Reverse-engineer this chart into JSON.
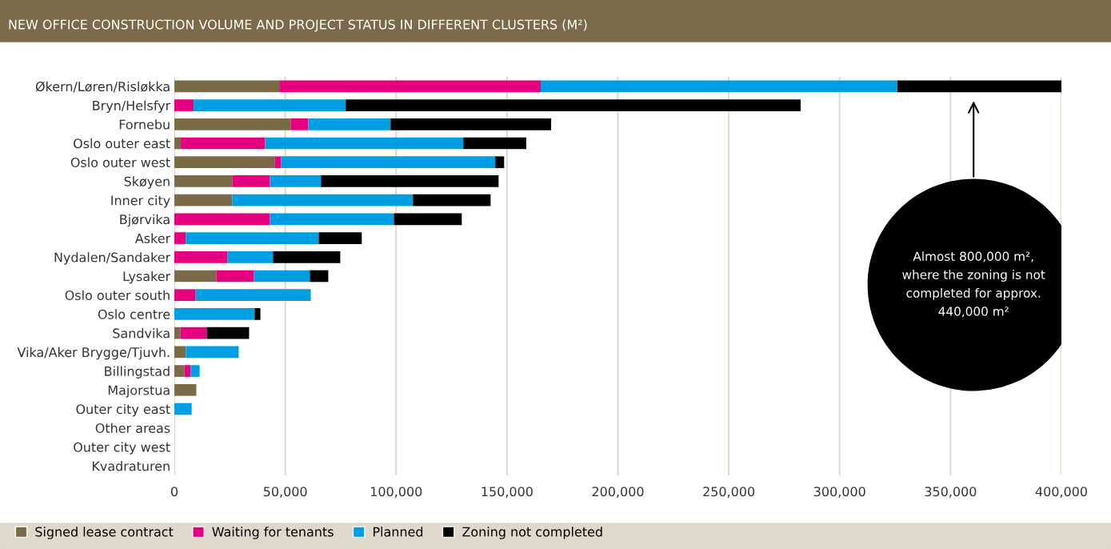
{
  "chart_data": {
    "type": "bar",
    "orientation": "horizontal",
    "stacked": true,
    "title": "NEW OFFICE CONSTRUCTION VOLUME AND PROJECT STATUS IN DIFFERENT CLUSTERS (M²)",
    "categories": [
      "Økern/Løren/Risløkka",
      "Bryn/Helsfyr",
      "Fornebu",
      "Oslo outer east",
      "Oslo outer west",
      "Skøyen",
      "Inner city",
      "Bjørvika",
      "Asker",
      "Nydalen/Sandaker",
      "Lysaker",
      "Oslo outer south",
      "Oslo centre",
      "Sandvika",
      "Vika/Aker Brygge/Tjuvh.",
      "Billingstad",
      "Majorstua",
      "Outer city east",
      "Other areas",
      "Outer city west",
      "Kvadraturen"
    ],
    "series": [
      {
        "name": "Signed lease contract",
        "color": "#7a6b48",
        "values": [
          47300,
          0,
          52400,
          2900,
          45200,
          26100,
          26100,
          0,
          0,
          0,
          18900,
          0,
          0,
          2700,
          5200,
          4500,
          9900,
          0,
          0,
          0,
          0
        ]
      },
      {
        "name": "Waiting for tenants",
        "color": "#e4007f",
        "values": [
          117900,
          8700,
          8000,
          38000,
          2900,
          17000,
          0,
          43100,
          5200,
          24000,
          17000,
          9600,
          0,
          11900,
          0,
          2900,
          0,
          0,
          0,
          0,
          0
        ]
      },
      {
        "name": "Planned",
        "color": "#009fe3",
        "values": [
          160800,
          68600,
          37100,
          89400,
          96600,
          23000,
          81500,
          55900,
          59900,
          20500,
          25200,
          51900,
          36200,
          0,
          23800,
          4000,
          0,
          7800,
          0,
          0,
          0
        ]
      },
      {
        "name": "Zoning not completed",
        "color": "#000000",
        "values": [
          74000,
          205100,
          72400,
          28400,
          4000,
          80100,
          35000,
          30600,
          19400,
          30300,
          8300,
          0,
          2600,
          19100,
          0,
          0,
          0,
          0,
          0,
          0,
          0
        ]
      }
    ],
    "xlim": [
      0,
      400000
    ],
    "xticks": [
      0,
      {
        "value": 50000,
        "label": "50,000"
      },
      {
        "value": 100000,
        "label": "100,000"
      },
      {
        "value": 150000,
        "label": "150,000"
      },
      {
        "value": 200000,
        "label": "200,000"
      },
      {
        "value": 250000,
        "label": "250,000"
      },
      {
        "value": 300000,
        "label": "300,000"
      },
      {
        "value": 350000,
        "label": "350,000"
      },
      {
        "value": 400000,
        "label": "400,000"
      }
    ],
    "grid": "x",
    "legend": "bottom",
    "annotations": [
      "Almost 800,000 m²,\nwhere the zoning is not\ncompleted for approx.\n440,000 m²"
    ]
  }
}
